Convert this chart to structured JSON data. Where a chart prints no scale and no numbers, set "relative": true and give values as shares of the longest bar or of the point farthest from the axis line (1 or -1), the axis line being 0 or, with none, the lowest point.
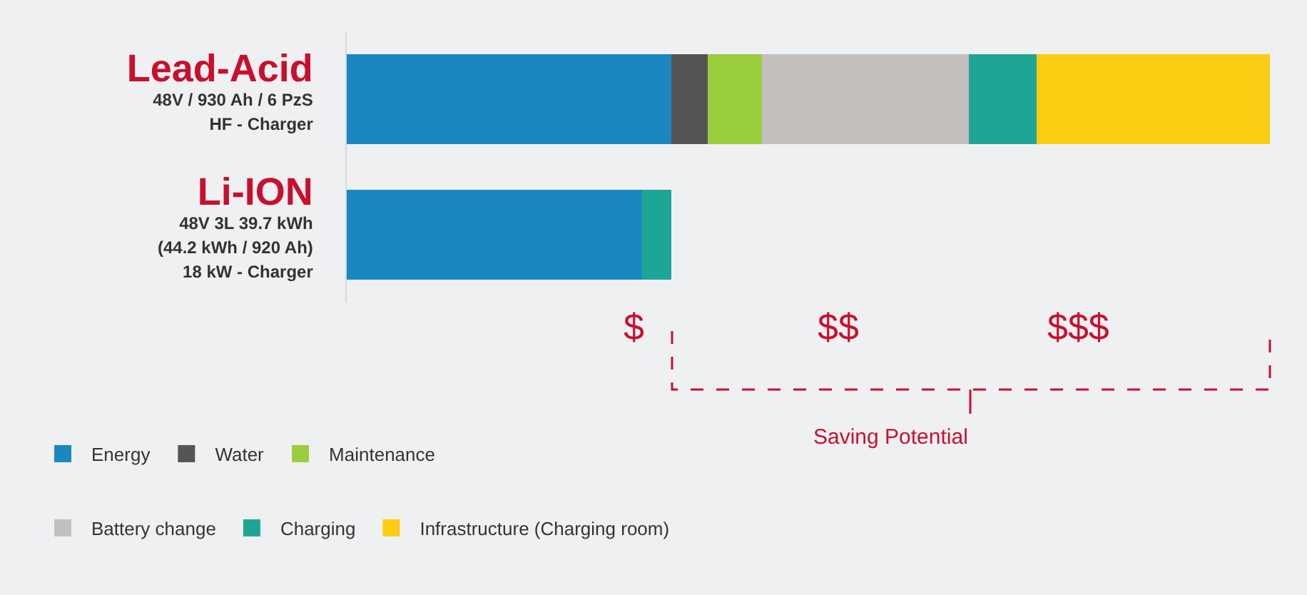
{
  "chart_data": {
    "type": "bar",
    "orientation": "horizontal",
    "stacked": true,
    "relative": true,
    "legend": "bottom",
    "categories": [
      "Lead-Acid\n48V / 930 Ah / 6 PzS\nHF - Charger",
      "Li-ION\n48V 3L 39.7 kWh\n(44.2 kWh / 920 Ah)\n18 kW - Charger"
    ],
    "series": [
      {
        "name": "Energy",
        "color": "#1a87bf",
        "values": [
          0.352,
          0.32
        ]
      },
      {
        "name": "Water",
        "color": "#555555",
        "values": [
          0.039,
          null
        ]
      },
      {
        "name": "Maintenance",
        "color": "#9acd3c",
        "values": [
          0.059,
          null
        ]
      },
      {
        "name": "Battery change",
        "color": "#c2bfbc",
        "values": [
          0.224,
          null
        ]
      },
      {
        "name": "Charging",
        "color": "#1fa596",
        "values": [
          0.073,
          0.032
        ]
      },
      {
        "name": "Infrastructure (Charging room)",
        "color": "#fccc12",
        "values": [
          0.253,
          null
        ]
      }
    ],
    "annotations": [
      "$",
      "$$",
      "$$$",
      "Saving Potential"
    ]
  }
}
